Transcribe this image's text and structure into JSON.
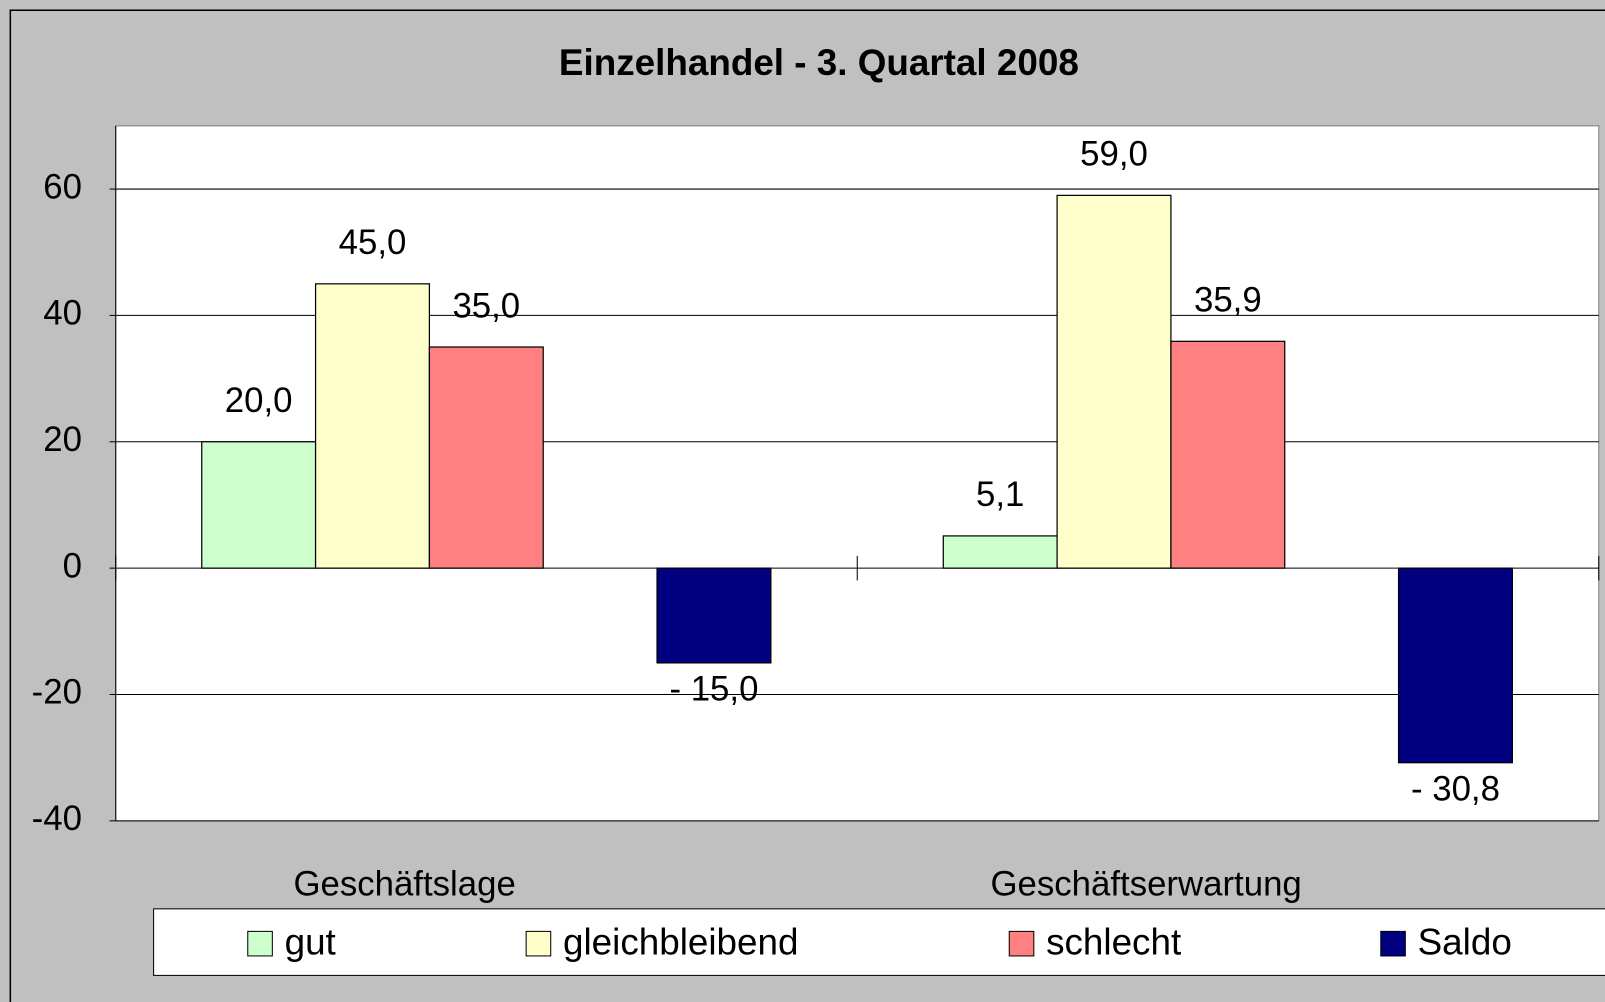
{
  "chart_data": {
    "type": "bar",
    "title": "Einzelhandel - 3. Quartal 2008",
    "categories": [
      "Geschäftslage",
      "Geschäftserwartung"
    ],
    "series": [
      {
        "name": "gut",
        "color": "#ccffcc",
        "values": [
          20.0,
          5.1
        ],
        "value_labels": [
          "20,0",
          "5,1"
        ]
      },
      {
        "name": "gleichbleibend",
        "color": "#ffffcc",
        "values": [
          45.0,
          59.0
        ],
        "value_labels": [
          "45,0",
          "59,0"
        ]
      },
      {
        "name": "schlecht",
        "color": "#ff8080",
        "values": [
          35.0,
          35.9
        ],
        "value_labels": [
          "35,0",
          "35,9"
        ]
      },
      {
        "name": "Saldo",
        "color": "#000080",
        "values": [
          -15.0,
          -30.8
        ],
        "value_labels": [
          "- 15,0",
          "- 30,8"
        ]
      }
    ],
    "ylim": [
      -40,
      70
    ],
    "yticks": [
      -40,
      -20,
      0,
      20,
      40,
      60
    ],
    "grid": true,
    "legend": "bottom"
  }
}
